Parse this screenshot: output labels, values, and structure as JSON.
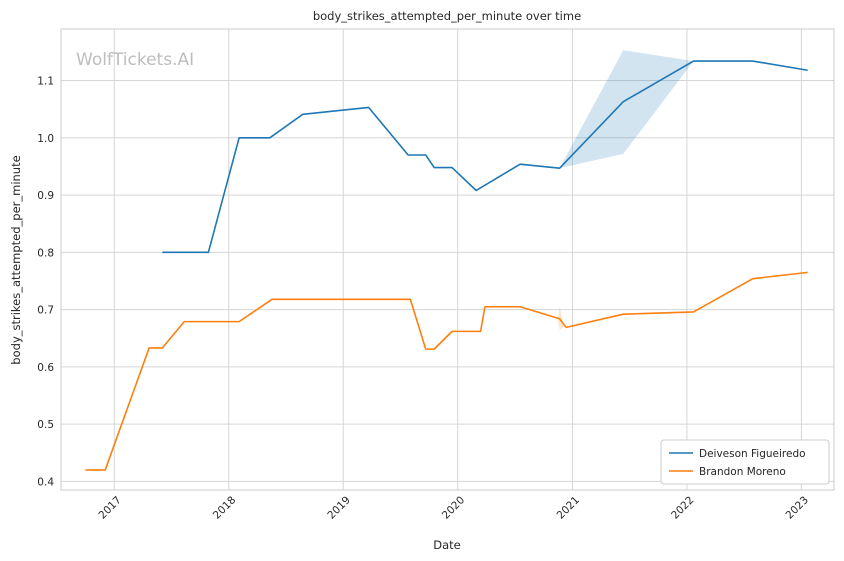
{
  "chart_data": {
    "type": "line",
    "title": "body_strikes_attempted_per_minute over time",
    "xlabel": "Date",
    "ylabel": "body_strikes_attempted_per_minute",
    "xlim": [
      "2016-07-15",
      "2023-04-15"
    ],
    "ylim": [
      0.385,
      1.19
    ],
    "x_ticks": [
      {
        "date": "2017-01-01",
        "label": "2017"
      },
      {
        "date": "2018-01-01",
        "label": "2018"
      },
      {
        "date": "2019-01-01",
        "label": "2019"
      },
      {
        "date": "2020-01-01",
        "label": "2020"
      },
      {
        "date": "2021-01-01",
        "label": "2021"
      },
      {
        "date": "2022-01-01",
        "label": "2022"
      },
      {
        "date": "2023-01-01",
        "label": "2023"
      }
    ],
    "y_ticks": [
      0.4,
      0.5,
      0.6,
      0.7,
      0.8,
      0.9,
      1.0,
      1.1
    ],
    "y_tick_labels": [
      "0.4",
      "0.5",
      "0.6",
      "0.7",
      "0.8",
      "0.9",
      "1.0",
      "1.1"
    ],
    "grid": true,
    "legend_position": "bottom-right",
    "watermark": "WolfTickets.AI",
    "series": [
      {
        "name": "Deiveson Figueiredo",
        "color": "#1f77b4",
        "points": [
          {
            "x": "2017-06-03",
            "y": 0.8
          },
          {
            "x": "2017-10-28",
            "y": 0.8
          },
          {
            "x": "2018-02-03",
            "y": 1.0
          },
          {
            "x": "2018-05-12",
            "y": 1.0
          },
          {
            "x": "2018-08-25",
            "y": 1.041
          },
          {
            "x": "2019-03-23",
            "y": 1.053
          },
          {
            "x": "2019-07-27",
            "y": 0.97
          },
          {
            "x": "2019-09-21",
            "y": 0.97
          },
          {
            "x": "2019-10-18",
            "y": 0.948
          },
          {
            "x": "2019-12-14",
            "y": 0.948
          },
          {
            "x": "2020-02-29",
            "y": 0.908
          },
          {
            "x": "2020-07-18",
            "y": 0.954
          },
          {
            "x": "2020-11-21",
            "y": 0.947
          },
          {
            "x": "2021-06-12",
            "y": 1.063
          },
          {
            "x": "2022-01-22",
            "y": 1.134
          },
          {
            "x": "2022-07-30",
            "y": 1.134
          },
          {
            "x": "2023-01-21",
            "y": 1.118
          }
        ],
        "band": [
          {
            "x": "2020-11-21",
            "lo": 0.947,
            "hi": 0.947
          },
          {
            "x": "2021-06-12",
            "lo": 0.972,
            "hi": 1.153
          },
          {
            "x": "2022-01-22",
            "lo": 1.134,
            "hi": 1.134
          }
        ]
      },
      {
        "name": "Brandon Moreno",
        "color": "#ff7f0e",
        "points": [
          {
            "x": "2016-10-01",
            "y": 0.42
          },
          {
            "x": "2016-12-03",
            "y": 0.42
          },
          {
            "x": "2017-04-22",
            "y": 0.633
          },
          {
            "x": "2017-06-03",
            "y": 0.633
          },
          {
            "x": "2017-08-12",
            "y": 0.679
          },
          {
            "x": "2018-02-03",
            "y": 0.679
          },
          {
            "x": "2018-05-19",
            "y": 0.718
          },
          {
            "x": "2019-08-03",
            "y": 0.718
          },
          {
            "x": "2019-09-21",
            "y": 0.631
          },
          {
            "x": "2019-10-18",
            "y": 0.631
          },
          {
            "x": "2019-12-14",
            "y": 0.662
          },
          {
            "x": "2020-03-14",
            "y": 0.662
          },
          {
            "x": "2020-03-28",
            "y": 0.705
          },
          {
            "x": "2020-07-18",
            "y": 0.705
          },
          {
            "x": "2020-11-21",
            "y": 0.684
          },
          {
            "x": "2020-12-12",
            "y": 0.669
          },
          {
            "x": "2021-06-12",
            "y": 0.692
          },
          {
            "x": "2022-01-22",
            "y": 0.696
          },
          {
            "x": "2022-07-30",
            "y": 0.754
          },
          {
            "x": "2023-01-21",
            "y": 0.765
          }
        ],
        "band": [
          {
            "x": "2020-11-15",
            "lo": 0.684,
            "hi": 0.684
          },
          {
            "x": "2020-11-21",
            "lo": 0.665,
            "hi": 0.705
          },
          {
            "x": "2020-12-05",
            "lo": 0.669,
            "hi": 0.669
          }
        ]
      }
    ]
  }
}
